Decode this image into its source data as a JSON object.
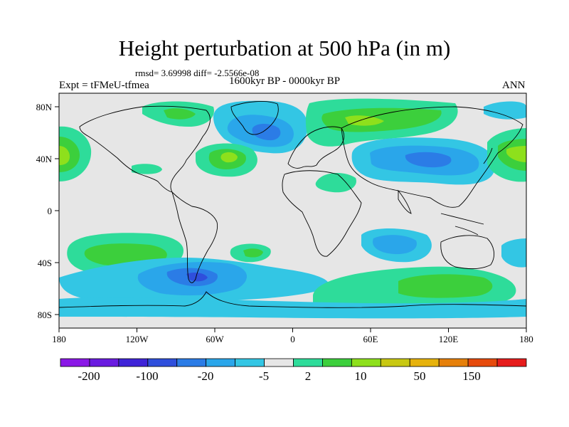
{
  "title": "Height perturbation at 500 hPa (in m)",
  "stats": "rmsd= 3.69998 diff= -2.5566e-08",
  "experiment": "Expt = tFMeU-tfmea",
  "period": "1600kyr BP - 0000kyr BP",
  "season": "ANN",
  "x_ticks": [
    "180",
    "120W",
    "60W",
    "0",
    "60E",
    "120E",
    "180"
  ],
  "y_ticks": [
    "80N",
    "40N",
    "0",
    "40S",
    "80S"
  ],
  "colorbar": {
    "labels": [
      "-200",
      "-100",
      "-20",
      "-5",
      "2",
      "10",
      "50",
      "150"
    ],
    "colors": [
      "#8a18e6",
      "#6a1be0",
      "#3f24d8",
      "#2f4fdc",
      "#2b7ce6",
      "#2aa6ea",
      "#33c6e4",
      "#e6e6e6",
      "#2edc9a",
      "#3ccf3c",
      "#8ee01c",
      "#c8c812",
      "#e6b20c",
      "#e6800a",
      "#e64a0c",
      "#e61c1c"
    ]
  },
  "colors": {
    "land_background": "#e6e6e6",
    "coastline": "#000000"
  }
}
